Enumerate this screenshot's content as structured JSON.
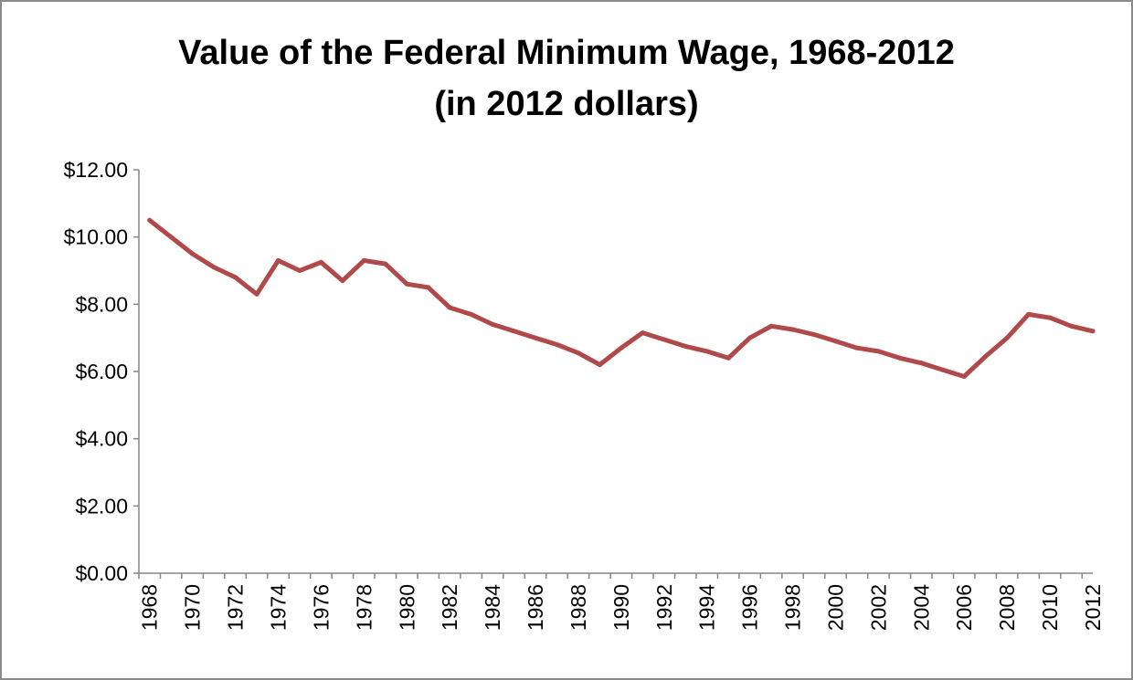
{
  "chart_data": {
    "type": "line",
    "title_lines": [
      "Value of the Federal Minimum Wage, 1968-2012",
      "(in 2012 dollars)"
    ],
    "xlabel": "",
    "ylabel": "",
    "ylim": [
      0,
      12
    ],
    "y_ticks": [
      "$0.00",
      "$2.00",
      "$4.00",
      "$6.00",
      "$8.00",
      "$10.00",
      "$12.00"
    ],
    "x_tick_labels": [
      "1968",
      "1970",
      "1972",
      "1974",
      "1976",
      "1978",
      "1980",
      "1982",
      "1984",
      "1986",
      "1988",
      "1990",
      "1992",
      "1994",
      "1996",
      "1998",
      "2000",
      "2002",
      "2004",
      "2006",
      "2008",
      "2010",
      "2012"
    ],
    "grid": false,
    "legend": "none",
    "series": [
      {
        "color": "#b04a4a",
        "x": [
          1968,
          1969,
          1970,
          1971,
          1972,
          1973,
          1974,
          1975,
          1976,
          1977,
          1978,
          1979,
          1980,
          1981,
          1982,
          1983,
          1984,
          1985,
          1986,
          1987,
          1988,
          1989,
          1990,
          1991,
          1992,
          1993,
          1994,
          1995,
          1996,
          1997,
          1998,
          1999,
          2000,
          2001,
          2002,
          2003,
          2004,
          2005,
          2006,
          2007,
          2008,
          2009,
          2010,
          2011,
          2012
        ],
        "values": [
          10.5,
          10.0,
          9.5,
          9.1,
          8.8,
          8.3,
          9.3,
          9.0,
          9.25,
          8.7,
          9.3,
          9.2,
          8.6,
          8.5,
          7.9,
          7.7,
          7.4,
          7.2,
          7.0,
          6.8,
          6.55,
          6.2,
          6.7,
          7.15,
          6.95,
          6.75,
          6.6,
          6.4,
          7.0,
          7.35,
          7.25,
          7.1,
          6.9,
          6.7,
          6.6,
          6.4,
          6.25,
          6.05,
          5.85,
          6.45,
          7.0,
          7.7,
          7.6,
          7.35,
          7.2
        ]
      }
    ]
  }
}
